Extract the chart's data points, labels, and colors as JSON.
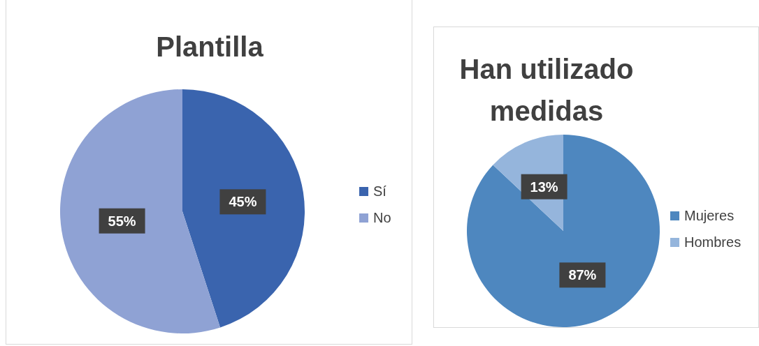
{
  "chart_data": [
    {
      "type": "pie",
      "title": "Plantilla",
      "categories": [
        "Sí",
        "No"
      ],
      "values": [
        45,
        55
      ],
      "colors": [
        "#3a64ae",
        "#8fa2d4"
      ],
      "value_labels": [
        "45%",
        "55%"
      ],
      "legend": "right"
    },
    {
      "type": "pie",
      "title": "Han utilizado medidas",
      "categories": [
        "Mujeres",
        "Hombres"
      ],
      "values": [
        87,
        13
      ],
      "colors": [
        "#4e87bf",
        "#95b5dc"
      ],
      "value_labels": [
        "87%",
        "13%"
      ],
      "legend": "right"
    }
  ]
}
